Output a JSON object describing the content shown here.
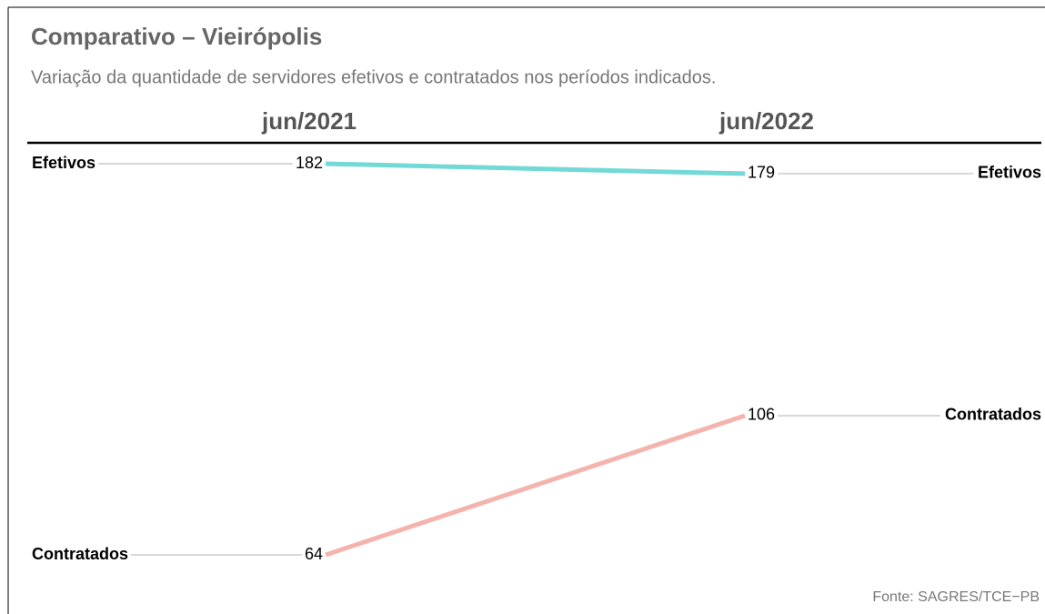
{
  "chart_data": {
    "type": "slope",
    "title": "Comparativo – Vieirópolis",
    "subtitle": "Variação da quantidade de servidores efetivos e contratados nos períodos indicados.",
    "categories": [
      "jun/2021",
      "jun/2022"
    ],
    "series": [
      {
        "name": "Efetivos",
        "color": "#72d9d6",
        "values": [
          182,
          179
        ]
      },
      {
        "name": "Contratados",
        "color": "#f6b3ae",
        "values": [
          64,
          106
        ]
      }
    ],
    "source": "Fonte: SAGRES/TCE−PB"
  }
}
